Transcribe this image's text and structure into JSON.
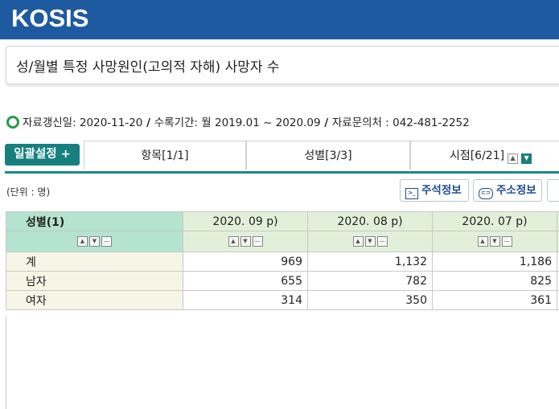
{
  "app": {
    "logo": "KOSIS"
  },
  "page": {
    "title": "성/월별 특정 사망원인(고의적 자해) 사망자 수"
  },
  "info": {
    "updated_label": "자료갱신일: 2020-11-20",
    "period_label": "수록기간: 월 2019.01 ~ 2020.09",
    "contact_label": "자료문의처 : 042-481-2252",
    "sep": " / "
  },
  "toolbar": {
    "bulk_label": "일괄설정 +",
    "tabs": [
      "항목[1/1]",
      "성별[3/3]",
      "시점[6/21]"
    ]
  },
  "unit": "(단위 : 명)",
  "actions": {
    "note_label": "주석정보",
    "url_label": "주소정보"
  },
  "table": {
    "row_header": "성별(1)",
    "columns": [
      "2020. 09 p)",
      "2020. 08 p)",
      "2020. 07 p)"
    ],
    "rows": [
      {
        "label": "계",
        "values": [
          "969",
          "1,132",
          "1,186"
        ]
      },
      {
        "label": "남자",
        "values": [
          "655",
          "782",
          "825"
        ]
      },
      {
        "label": "여자",
        "values": [
          "314",
          "350",
          "361"
        ]
      }
    ]
  },
  "colors": {
    "header_bar": "#1e5aa0",
    "accent": "#16807f"
  }
}
